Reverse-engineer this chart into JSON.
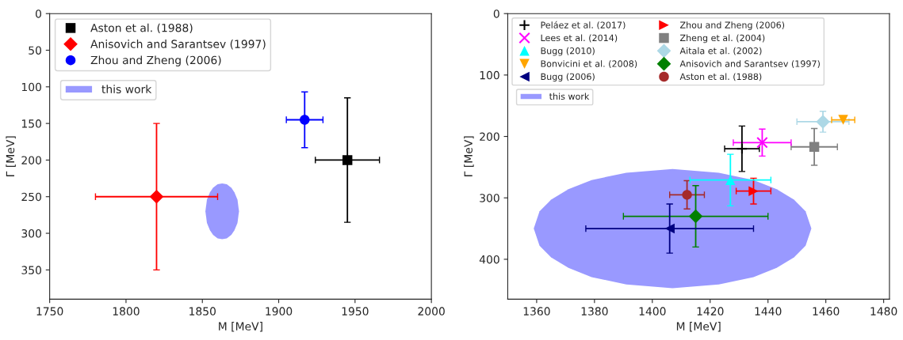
{
  "chart_data": [
    {
      "type": "scatter",
      "xlabel": "M [MeV]",
      "ylabel": "Γ [MeV]",
      "xlim": [
        1750,
        2000
      ],
      "ylim": [
        390,
        0
      ],
      "xticks": [
        1750,
        1800,
        1850,
        1900,
        1950,
        2000
      ],
      "yticks": [
        0,
        50,
        100,
        150,
        200,
        250,
        300,
        350
      ],
      "legend": "top left",
      "grid": false,
      "series": [
        {
          "name": "Aston et al. (1988)",
          "color": "#000000",
          "marker": "square",
          "x": [
            1945
          ],
          "values": [
            200
          ],
          "xerrors": [
            21
          ],
          "errors": [
            85
          ]
        },
        {
          "name": "Anisovich and Sarantsev (1997)",
          "color": "#ff0000",
          "marker": "diamond",
          "x": [
            1820
          ],
          "values": [
            250
          ],
          "xerrors": [
            40
          ],
          "errors": [
            100
          ]
        },
        {
          "name": "Zhou and Zheng (2006)",
          "color": "#0000ff",
          "marker": "circle",
          "x": [
            1917
          ],
          "values": [
            145
          ],
          "xerrors": [
            12
          ],
          "errors": [
            38
          ]
        },
        {
          "name": "this work",
          "type": "area",
          "color": "#9999ff",
          "x": [
            1852,
            1853,
            1855,
            1857,
            1860,
            1863,
            1866,
            1869,
            1871,
            1873,
            1874,
            1873,
            1871,
            1869,
            1866,
            1863,
            1860,
            1857,
            1855,
            1853
          ],
          "values": [
            270,
            286,
            296,
            302,
            307,
            308,
            307,
            302,
            296,
            286,
            270,
            254,
            244,
            238,
            233,
            232,
            233,
            238,
            244,
            254
          ]
        }
      ]
    },
    {
      "type": "scatter",
      "xlabel": "M [MeV]",
      "ylabel": "Γ [MeV]",
      "xlim": [
        1350,
        1482
      ],
      "ylim": [
        465,
        0
      ],
      "xticks": [
        1360,
        1380,
        1400,
        1420,
        1440,
        1460,
        1480
      ],
      "yticks": [
        0,
        100,
        200,
        300,
        400
      ],
      "legend": "top left",
      "grid": false,
      "series": [
        {
          "name": "Peláez et al. (2017)",
          "color": "#000000",
          "marker": "plus",
          "x": [
            1431
          ],
          "values": [
            220
          ],
          "xerrors": [
            6
          ],
          "errors": [
            37
          ]
        },
        {
          "name": "Lees et al. (2014)",
          "color": "#ff00ff",
          "marker": "x",
          "x": [
            1438
          ],
          "values": [
            210
          ],
          "xerrors": [
            10
          ],
          "errors": [
            22
          ]
        },
        {
          "name": "Bugg (2010)",
          "color": "#00ffff",
          "marker": "triangle_up",
          "x": [
            1427
          ],
          "values": [
            271
          ],
          "xerrors": [
            14
          ],
          "errors": [
            42
          ]
        },
        {
          "name": "Bonvicini et al. (2008)",
          "color": "#ffa500",
          "marker": "triangle_down",
          "x": [
            1466
          ],
          "values": [
            173
          ],
          "xerrors": [
            4
          ],
          "errors": [
            null
          ]
        },
        {
          "name": "Bugg (2006)",
          "color": "#000080",
          "marker": "triangle_left",
          "x": [
            1406
          ],
          "values": [
            350
          ],
          "xerrors": [
            29
          ],
          "errors": [
            40
          ]
        },
        {
          "name": "Zhou and Zheng (2006)",
          "color": "#ff0000",
          "marker": "triangle_right",
          "x": [
            1435
          ],
          "values": [
            289
          ],
          "xerrors": [
            6
          ],
          "errors": [
            21
          ]
        },
        {
          "name": "Zheng et al. (2004)",
          "color": "#808080",
          "marker": "square",
          "x": [
            1456
          ],
          "values": [
            217
          ],
          "xerrors": [
            8
          ],
          "errors": [
            30
          ]
        },
        {
          "name": "Aitala et al. (2002)",
          "color": "#add8e6",
          "marker": "diamond",
          "x": [
            1459
          ],
          "values": [
            176
          ],
          "xerrors": [
            9
          ],
          "errors": [
            17
          ]
        },
        {
          "name": "Anisovich and Sarantsev (1997)",
          "color": "#008000",
          "marker": "diamond",
          "x": [
            1415
          ],
          "values": [
            330
          ],
          "xerrors": [
            25
          ],
          "errors": [
            50
          ]
        },
        {
          "name": "Aston et al. (1988)",
          "color": "#a52a2a",
          "marker": "circle",
          "x": [
            1412
          ],
          "values": [
            295
          ],
          "xerrors": [
            6
          ],
          "errors": [
            23
          ]
        },
        {
          "name": "this work",
          "type": "area",
          "color": "#9999ff",
          "x": [
            1359,
            1361,
            1365,
            1371,
            1379,
            1391,
            1407,
            1423,
            1435,
            1443,
            1449,
            1453,
            1455,
            1453,
            1449,
            1443,
            1435,
            1423,
            1407,
            1391,
            1379,
            1371,
            1365,
            1361
          ],
          "values": [
            350,
            378,
            397,
            414,
            429,
            441,
            447,
            441,
            429,
            414,
            397,
            378,
            350,
            322,
            303,
            286,
            271,
            259,
            253,
            259,
            271,
            286,
            303,
            322
          ]
        }
      ]
    }
  ]
}
